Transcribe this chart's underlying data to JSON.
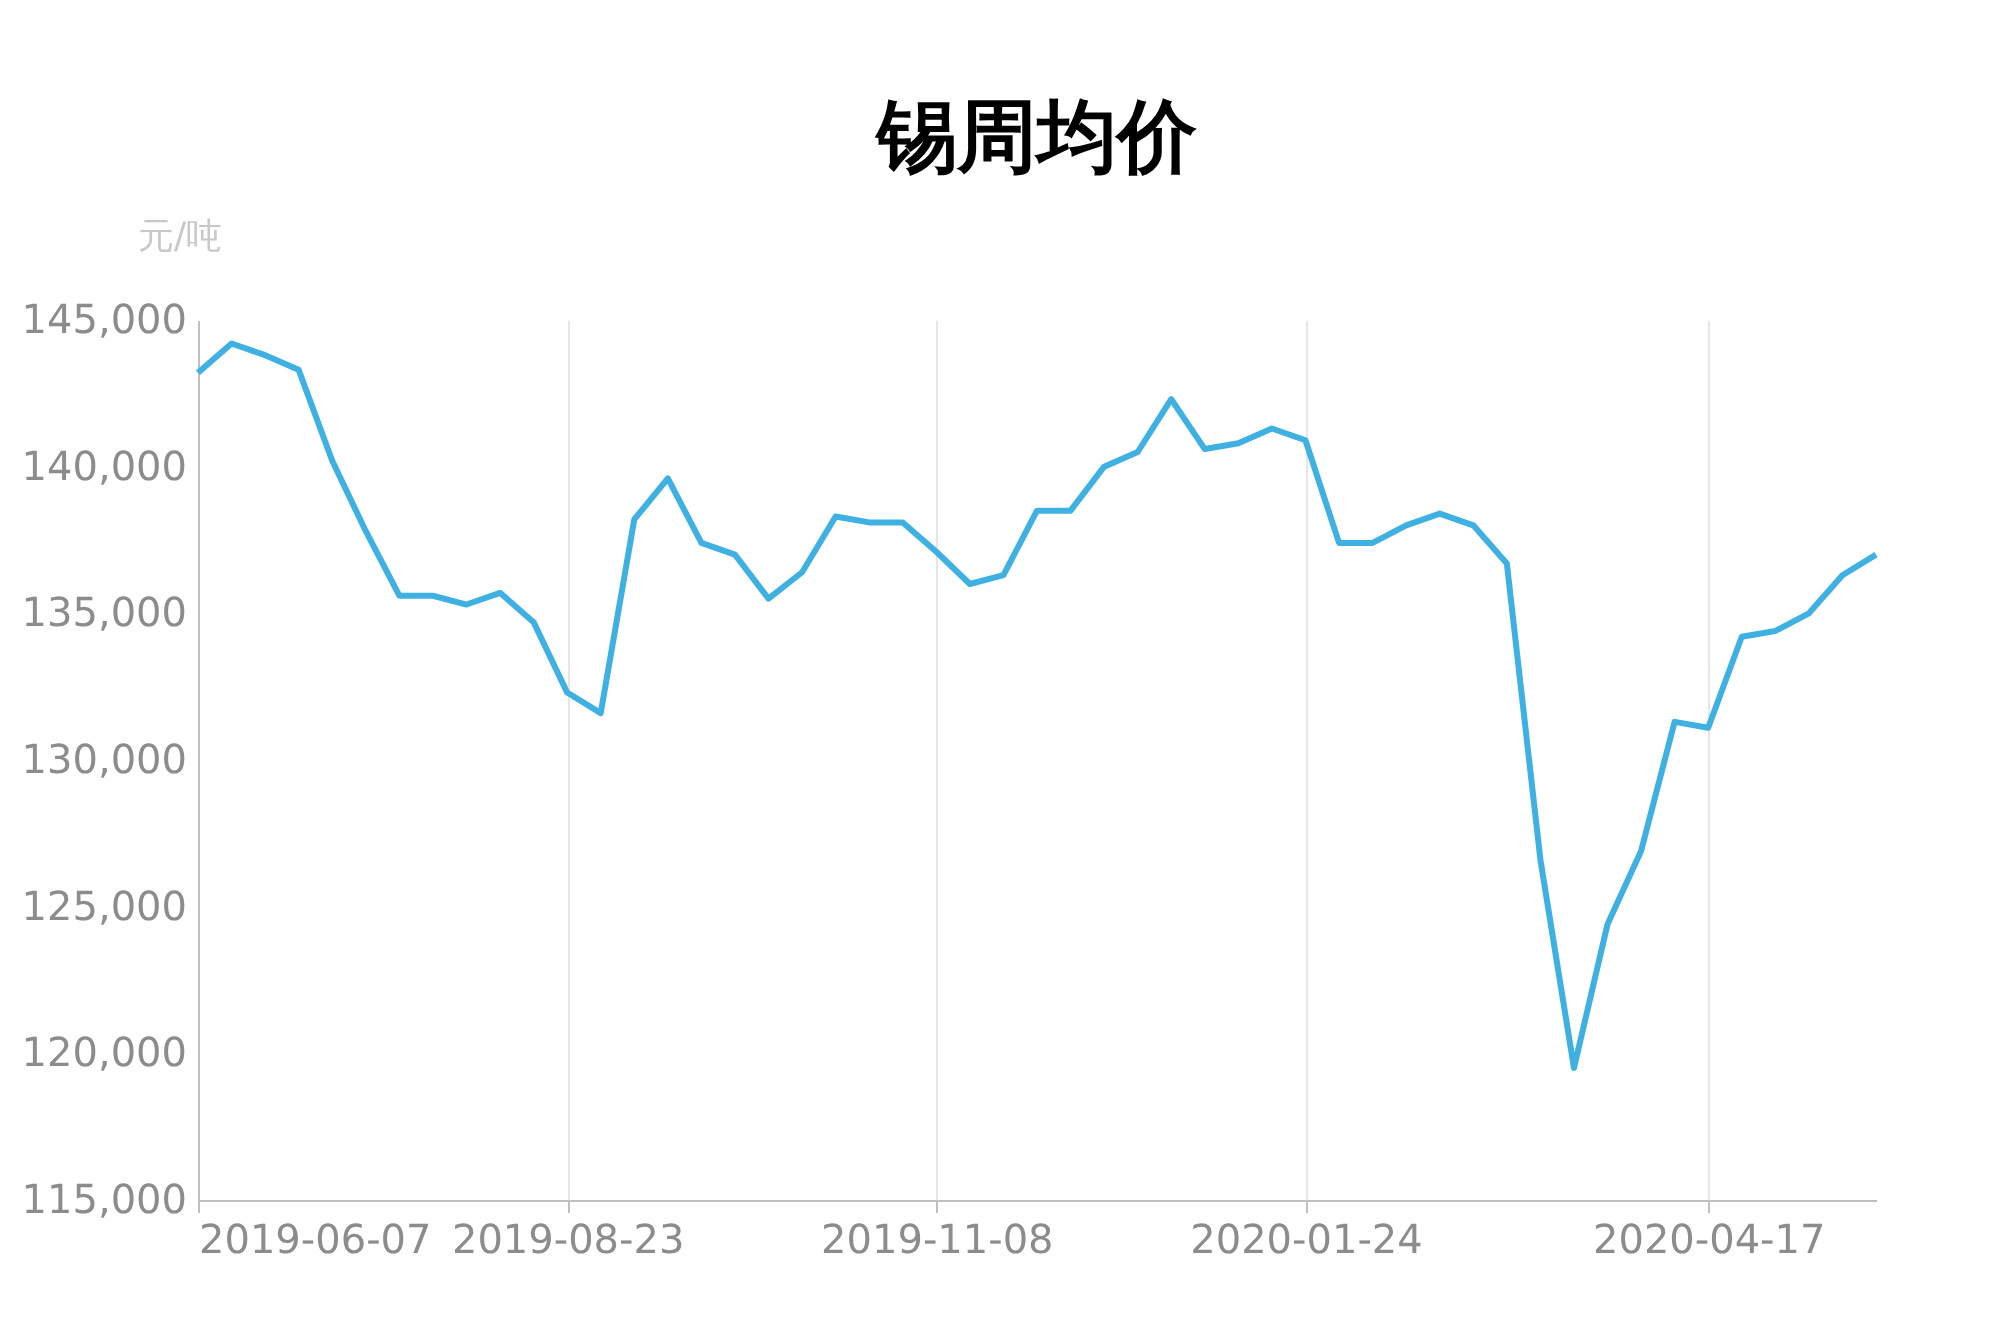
{
  "chart_data": {
    "type": "line",
    "title": "锡周均价",
    "ylabel": "元/吨",
    "x": [
      "2019-06-07",
      "2019-06-14",
      "2019-06-21",
      "2019-06-28",
      "2019-07-05",
      "2019-07-12",
      "2019-07-19",
      "2019-07-26",
      "2019-08-02",
      "2019-08-09",
      "2019-08-16",
      "2019-08-23",
      "2019-08-30",
      "2019-09-06",
      "2019-09-13",
      "2019-09-20",
      "2019-09-27",
      "2019-10-04",
      "2019-10-11",
      "2019-10-18",
      "2019-10-25",
      "2019-11-01",
      "2019-11-08",
      "2019-11-15",
      "2019-11-22",
      "2019-11-29",
      "2019-12-06",
      "2019-12-13",
      "2019-12-20",
      "2019-12-27",
      "2020-01-03",
      "2020-01-10",
      "2020-01-17",
      "2020-01-24",
      "2020-01-31",
      "2020-02-07",
      "2020-02-14",
      "2020-02-21",
      "2020-02-28",
      "2020-03-06",
      "2020-03-13",
      "2020-03-20",
      "2020-03-27",
      "2020-04-03",
      "2020-04-10",
      "2020-04-17",
      "2020-04-24",
      "2020-05-01",
      "2020-05-08",
      "2020-05-15",
      "2020-05-22"
    ],
    "series": [
      {
        "color": "#3eb0e2",
        "values": [
          143200,
          144200,
          143800,
          143300,
          140200,
          137800,
          135600,
          135600,
          135300,
          135700,
          134700,
          132300,
          131600,
          138200,
          139600,
          137400,
          137000,
          135500,
          136400,
          138300,
          138100,
          138100,
          137100,
          136000,
          136300,
          138500,
          138500,
          140000,
          140500,
          142300,
          140600,
          140800,
          141300,
          140900,
          137400,
          137400,
          138000,
          138400,
          138000,
          136700,
          126600,
          119500,
          124400,
          126900,
          131300,
          131100,
          134200,
          134400,
          135000,
          136300,
          137000
        ]
      }
    ],
    "xlim": [
      "2019-06-07",
      "2020-05-22"
    ],
    "xticks": [
      "2019-06-07",
      "2019-08-23",
      "2019-11-08",
      "2020-01-24",
      "2020-04-17"
    ],
    "ylim": [
      115000,
      145000
    ],
    "yticks": [
      {
        "value": 115000,
        "label": "115,000"
      },
      {
        "value": 120000,
        "label": "120,000"
      },
      {
        "value": 125000,
        "label": "125,000"
      },
      {
        "value": 130000,
        "label": "130,000"
      },
      {
        "value": 135000,
        "label": "135,000"
      },
      {
        "value": 140000,
        "label": "140,000"
      },
      {
        "value": 145000,
        "label": "145,000"
      }
    ],
    "grid": "x",
    "marker": "none",
    "line_style": "solid"
  }
}
